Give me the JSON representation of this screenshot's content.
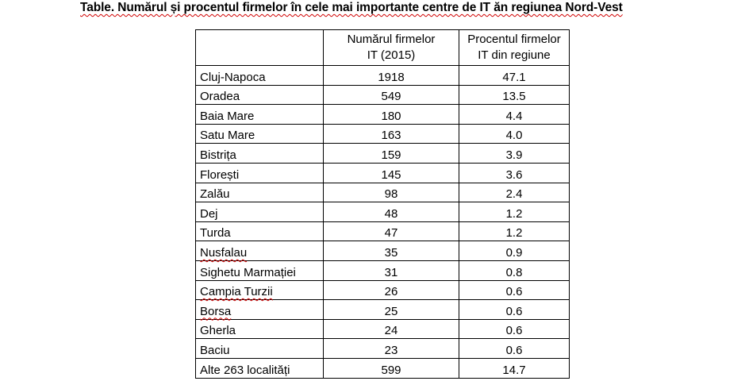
{
  "title": "Table. Numărul și procentul firmelor în cele mai importante centre de IT ăn regiunea Nord-Vest",
  "table": {
    "headers": [
      "",
      "Numărul firmelor IT (2015)",
      "Procentul firmelor IT din regiune"
    ],
    "header_lines": {
      "count": [
        "Numărul firmelor",
        "IT (2015)"
      ],
      "pct": [
        "Procentul firmelor",
        "IT din regiune"
      ]
    },
    "rows": [
      {
        "city": "Cluj-Napoca",
        "count": "1918",
        "pct": "47.1",
        "spell_flag": false
      },
      {
        "city": "Oradea",
        "count": "549",
        "pct": "13.5",
        "spell_flag": false
      },
      {
        "city": "Baia Mare",
        "count": "180",
        "pct": "4.4",
        "spell_flag": false
      },
      {
        "city": "Satu Mare",
        "count": "163",
        "pct": "4.0",
        "spell_flag": false
      },
      {
        "city": "Bistrița",
        "count": "159",
        "pct": "3.9",
        "spell_flag": false
      },
      {
        "city": "Florești",
        "count": "145",
        "pct": "3.6",
        "spell_flag": false
      },
      {
        "city": "Zalău",
        "count": "98",
        "pct": "2.4",
        "spell_flag": false
      },
      {
        "city": "Dej",
        "count": "48",
        "pct": "1.2",
        "spell_flag": false
      },
      {
        "city": "Turda",
        "count": "47",
        "pct": "1.2",
        "spell_flag": false
      },
      {
        "city": "Nusfalau",
        "count": "35",
        "pct": "0.9",
        "spell_flag": true
      },
      {
        "city": "Sighetu Marmației",
        "count": "31",
        "pct": "0.8",
        "spell_flag": false
      },
      {
        "city": "Campia Turzii",
        "count": "26",
        "pct": "0.6",
        "spell_flag": true
      },
      {
        "city": "Borsa",
        "count": "25",
        "pct": "0.6",
        "spell_flag": true
      },
      {
        "city": "Gherla",
        "count": "24",
        "pct": "0.6",
        "spell_flag": false
      },
      {
        "city": "Baciu",
        "count": "23",
        "pct": "0.6",
        "spell_flag": false
      },
      {
        "city": "Alte 263 localități",
        "count": "599",
        "pct": "14.7",
        "spell_flag": false
      }
    ]
  },
  "colors": {
    "text": "#000000",
    "border": "#000000",
    "spellcheck_underline": "#d00000"
  }
}
